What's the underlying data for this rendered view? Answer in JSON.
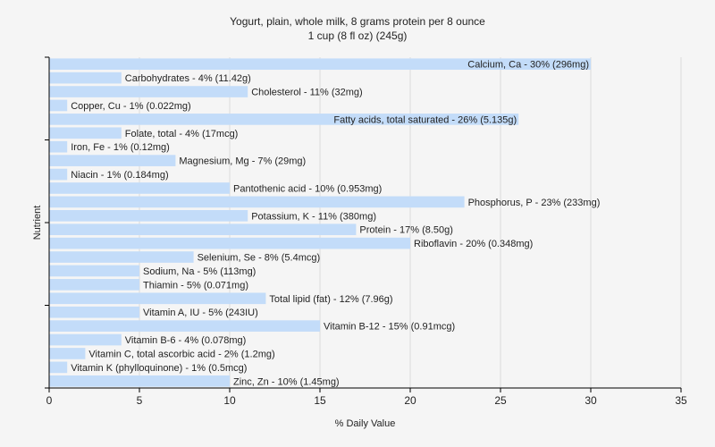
{
  "chart_data": {
    "type": "bar",
    "orientation": "horizontal",
    "title": "Yogurt, plain, whole milk, 8 grams protein per 8 ounce",
    "subtitle": "1 cup (8 fl oz) (245g)",
    "xlabel": "% Daily Value",
    "ylabel": "Nutrient",
    "xlim": [
      0,
      35
    ],
    "xticks": [
      0,
      5,
      10,
      15,
      20,
      25,
      30,
      35
    ],
    "grid": true,
    "bar_color": "#c3dcf9",
    "categories": [
      "Calcium, Ca",
      "Carbohydrates",
      "Cholesterol",
      "Copper, Cu",
      "Fatty acids, total saturated",
      "Folate, total",
      "Iron, Fe",
      "Magnesium, Mg",
      "Niacin",
      "Pantothenic acid",
      "Phosphorus, P",
      "Potassium, K",
      "Protein",
      "Riboflavin",
      "Selenium, Se",
      "Sodium, Na",
      "Thiamin",
      "Total lipid (fat)",
      "Vitamin A, IU",
      "Vitamin B-12",
      "Vitamin B-6",
      "Vitamin C, total ascorbic acid",
      "Vitamin K (phylloquinone)",
      "Zinc, Zn"
    ],
    "values": [
      30,
      4,
      11,
      1,
      26,
      4,
      1,
      7,
      1,
      10,
      23,
      11,
      17,
      20,
      8,
      5,
      5,
      12,
      5,
      15,
      4,
      2,
      1,
      10
    ],
    "labels": [
      "Calcium, Ca - 30% (296mg)",
      "Carbohydrates - 4% (11.42g)",
      "Cholesterol - 11% (32mg)",
      "Copper, Cu - 1% (0.022mg)",
      "Fatty acids, total saturated - 26% (5.135g)",
      "Folate, total - 4% (17mcg)",
      "Iron, Fe - 1% (0.12mg)",
      "Magnesium, Mg - 7% (29mg)",
      "Niacin - 1% (0.184mg)",
      "Pantothenic acid - 10% (0.953mg)",
      "Phosphorus, P - 23% (233mg)",
      "Potassium, K - 11% (380mg)",
      "Protein - 17% (8.50g)",
      "Riboflavin - 20% (0.348mg)",
      "Selenium, Se - 8% (5.4mcg)",
      "Sodium, Na - 5% (113mg)",
      "Thiamin - 5% (0.071mg)",
      "Total lipid (fat) - 12% (7.96g)",
      "Vitamin A, IU - 5% (243IU)",
      "Vitamin B-12 - 15% (0.91mcg)",
      "Vitamin B-6 - 4% (0.078mg)",
      "Vitamin C, total ascorbic acid - 2% (1.2mg)",
      "Vitamin K (phylloquinone) - 1% (0.5mcg)",
      "Zinc, Zn - 10% (1.45mg)"
    ]
  }
}
